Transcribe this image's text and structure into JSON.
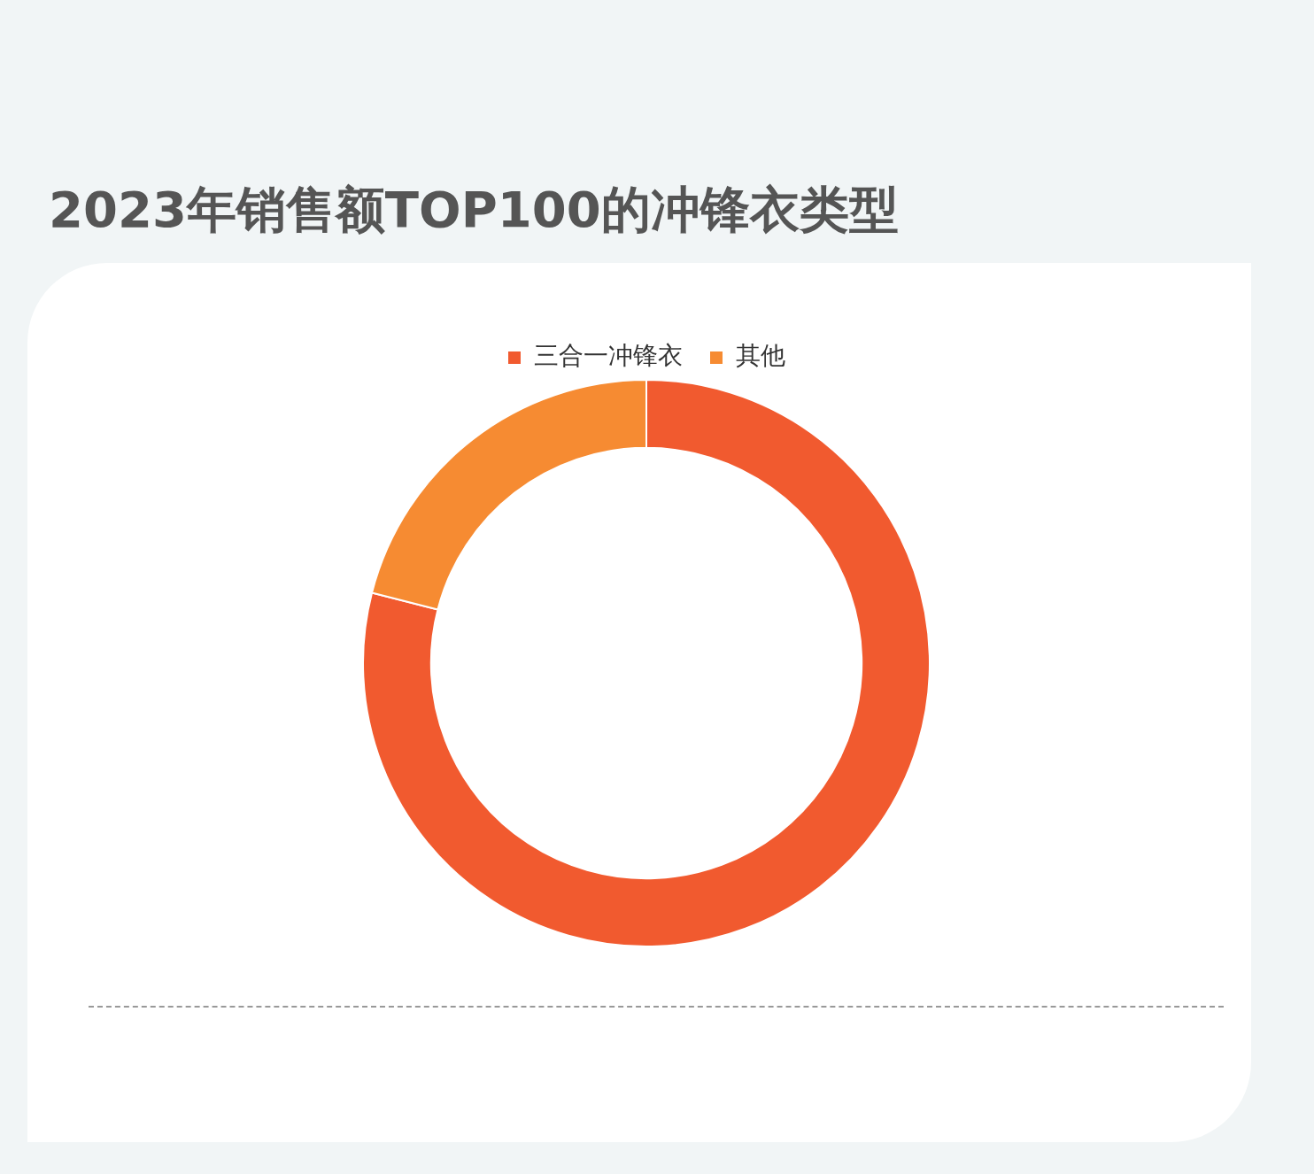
{
  "chart_data": {
    "type": "donut",
    "title": "2023年销售额TOP100的冲锋衣类型",
    "categories": [
      "三合一冲锋衣",
      "其他"
    ],
    "values": [
      79,
      21
    ],
    "colors": [
      "#f15a2f",
      "#f68b32"
    ],
    "legend": "top"
  }
}
